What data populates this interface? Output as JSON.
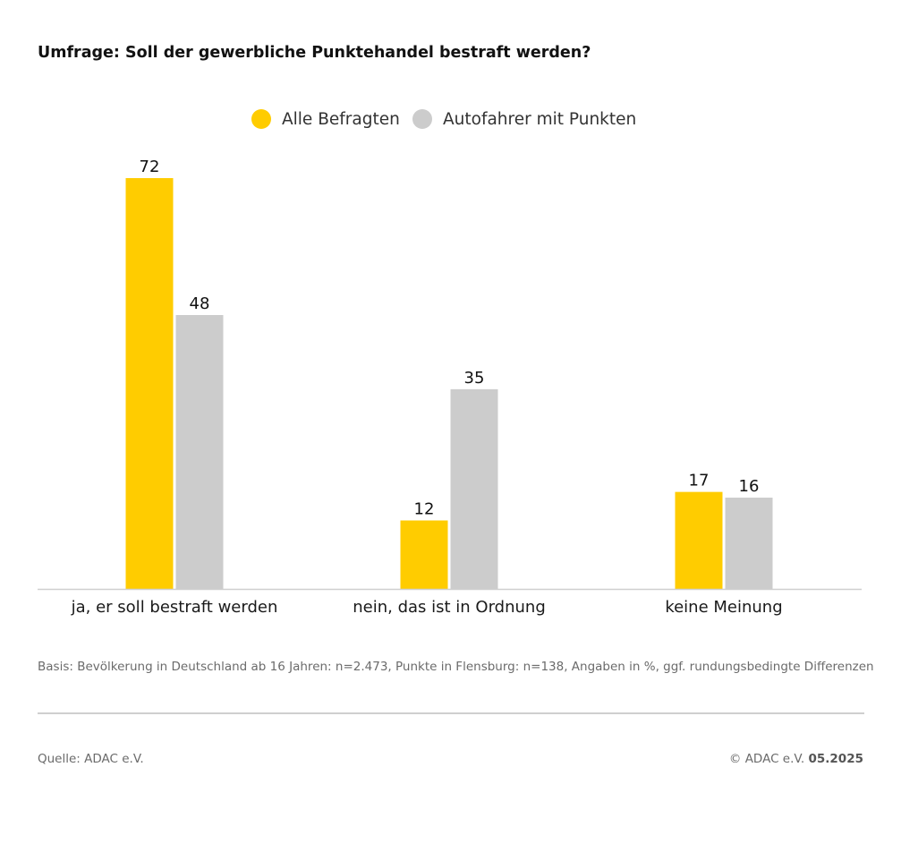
{
  "title": "Umfrage: Soll der gewerbliche Punktehandel bestraft werden?",
  "colors": {
    "series_1": "#FFCC00",
    "series_2": "#CCCCCC",
    "axis": "#cfcfcf"
  },
  "chart_data": {
    "type": "bar",
    "title": "Umfrage: Soll der gewerbliche Punktehandel bestraft werden?",
    "categories": [
      "ja, er soll bestraft werden",
      "nein, das ist in Ordnung",
      "keine Meinung"
    ],
    "series": [
      {
        "name": "Alle Befragten",
        "color": "#FFCC00",
        "values": [
          72,
          12,
          17
        ]
      },
      {
        "name": "Autofahrer mit Punkten",
        "color": "#CCCCCC",
        "values": [
          48,
          35,
          16
        ]
      }
    ],
    "xlabel": "",
    "ylabel": "",
    "ylim": [
      0,
      72
    ],
    "grid": false,
    "legend_position": "top-center",
    "data_labels": true
  },
  "footer": {
    "note": "Basis: Bevölkerung in Deutschland ab 16 Jahren: n=2.473, Punkte in Flensburg: n=138, Angaben in %, ggf. rundungsbedingte Differenzen",
    "source": "Quelle: ADAC e.V.",
    "copyright_prefix": "© ADAC e.V.",
    "date": "05.2025"
  }
}
